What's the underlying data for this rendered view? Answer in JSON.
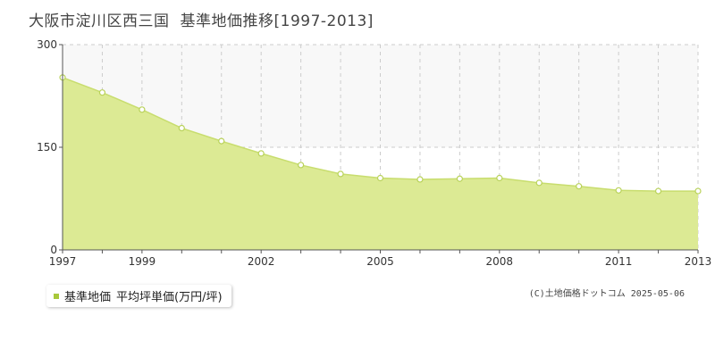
{
  "title": {
    "region": "大阪市淀川区西三国",
    "subtitle": "基準地価推移[1997-2013]"
  },
  "legend": {
    "series_name": "基準地価",
    "unit": "平均坪単価(万円/坪)"
  },
  "credit": "(C)土地価格ドットコム 2025-05-06",
  "colors": {
    "fill": "#dcea94",
    "line": "#c8dd6e",
    "marker_stroke": "#b9d25a",
    "upper_band": "#f8f8f8",
    "grid": "#cccccc",
    "axis": "#555555",
    "legend_swatch": "#a8c83a"
  },
  "chart_data": {
    "type": "area",
    "title": "大阪市淀川区西三国 基準地価推移[1997-2013]",
    "xlabel": "",
    "ylabel": "",
    "xlim": [
      1997,
      2013
    ],
    "ylim": [
      0,
      300
    ],
    "yticks": [
      0,
      150,
      300
    ],
    "xticks": [
      1997,
      1999,
      2002,
      2005,
      2008,
      2011,
      2013
    ],
    "grid": true,
    "legend_position": "bottom-left",
    "series": [
      {
        "name": "基準地価 平均坪単価(万円/坪)",
        "x": [
          1997,
          1998,
          1999,
          2000,
          2001,
          2002,
          2003,
          2004,
          2005,
          2006,
          2007,
          2008,
          2009,
          2010,
          2011,
          2012,
          2013
        ],
        "values": [
          252,
          230,
          205,
          178,
          159,
          141,
          124,
          111,
          105,
          103,
          104,
          105,
          98,
          93,
          87,
          86,
          86
        ]
      }
    ]
  }
}
